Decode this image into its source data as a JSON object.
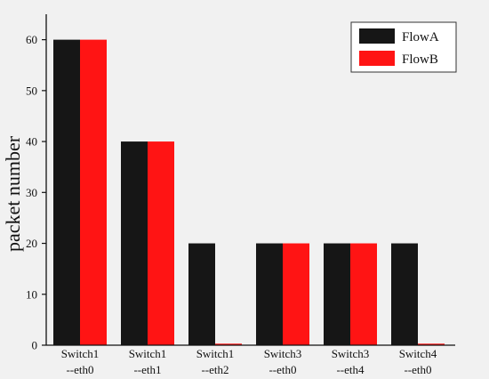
{
  "chart_data": {
    "type": "bar",
    "ylabel": "packet number",
    "xlabel": "",
    "ylim": [
      0,
      65
    ],
    "yticks": [
      0,
      10,
      20,
      30,
      40,
      50,
      60
    ],
    "legend_position": "top-right",
    "grid": false,
    "categories": [
      [
        "Switch1",
        "--eth0"
      ],
      [
        "Switch1",
        "--eth1"
      ],
      [
        "Switch1",
        "--eth2"
      ],
      [
        "Switch3",
        "--eth0"
      ],
      [
        "Switch3",
        "--eth4"
      ],
      [
        "Switch4",
        "--eth0"
      ]
    ],
    "series": [
      {
        "name": "FlowA",
        "color": "#161616",
        "values": [
          60,
          40,
          20,
          20,
          20,
          20
        ]
      },
      {
        "name": "FlowB",
        "color": "#ff1414",
        "values": [
          60,
          40,
          0.3,
          20,
          20,
          0.3
        ]
      }
    ]
  }
}
